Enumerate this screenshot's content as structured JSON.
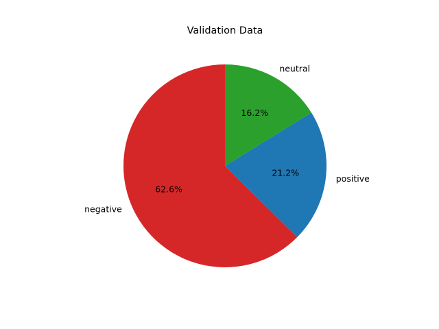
{
  "chart_data": {
    "type": "pie",
    "title": "Validation Data",
    "start_angle_deg": 90,
    "direction": "counterclockwise",
    "slices": [
      {
        "label": "negative",
        "value": 62.6,
        "pct_label": "62.6%",
        "color": "#d62728"
      },
      {
        "label": "positive",
        "value": 21.2,
        "pct_label": "21.2%",
        "color": "#1f77b4"
      },
      {
        "label": "neutral",
        "value": 16.2,
        "pct_label": "16.2%",
        "color": "#2ca02c"
      }
    ]
  }
}
